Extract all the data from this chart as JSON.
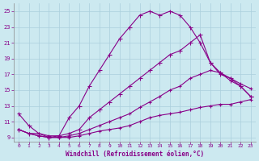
{
  "xlabel": "Windchill (Refroidissement éolien,°C)",
  "background_color": "#cce9f0",
  "grid_color": "#aacfdc",
  "line_color": "#880088",
  "xlim": [
    -0.5,
    23.5
  ],
  "ylim": [
    8.5,
    26.0
  ],
  "xticks": [
    0,
    1,
    2,
    3,
    4,
    5,
    6,
    7,
    8,
    9,
    10,
    11,
    12,
    13,
    14,
    15,
    16,
    17,
    18,
    19,
    20,
    21,
    22,
    23
  ],
  "yticks": [
    9,
    11,
    13,
    15,
    17,
    19,
    21,
    23,
    25
  ],
  "line_upper_x": [
    0,
    1,
    2,
    3,
    4,
    5,
    6,
    7,
    8,
    9,
    10,
    11,
    12,
    13,
    14,
    15,
    16,
    17,
    18,
    19,
    20,
    21,
    22,
    23
  ],
  "line_upper_y": [
    12.0,
    10.5,
    9.5,
    9.0,
    9.2,
    11.5,
    13.0,
    15.5,
    17.5,
    19.5,
    21.5,
    23.0,
    24.5,
    25.0,
    24.5,
    25.0,
    24.5,
    23.0,
    21.0,
    18.5,
    17.2,
    16.2,
    15.5,
    14.2
  ],
  "line_mid_x": [
    0,
    1,
    2,
    3,
    4,
    5,
    6,
    7,
    8,
    9,
    10,
    11,
    12,
    13,
    14,
    15,
    16,
    17,
    18,
    19,
    20,
    21,
    22,
    23
  ],
  "line_mid_y": [
    10.0,
    9.5,
    9.5,
    9.2,
    9.2,
    9.5,
    10.0,
    11.5,
    12.5,
    13.5,
    14.5,
    15.5,
    16.5,
    17.5,
    18.5,
    19.5,
    20.0,
    21.0,
    22.0,
    18.5,
    17.0,
    16.5,
    15.5,
    14.2
  ],
  "line_med2_x": [
    0,
    1,
    2,
    3,
    4,
    5,
    6,
    7,
    8,
    9,
    10,
    11,
    12,
    13,
    14,
    15,
    16,
    17,
    18,
    19,
    20,
    21,
    22,
    23
  ],
  "line_med2_y": [
    10.0,
    9.5,
    9.2,
    9.0,
    9.0,
    9.2,
    9.5,
    10.0,
    10.5,
    11.0,
    11.5,
    12.0,
    12.8,
    13.5,
    14.2,
    15.0,
    15.5,
    16.5,
    17.0,
    17.5,
    17.2,
    16.5,
    15.8,
    15.2
  ],
  "line_flat_x": [
    0,
    1,
    2,
    3,
    4,
    5,
    6,
    7,
    8,
    9,
    10,
    11,
    12,
    13,
    14,
    15,
    16,
    17,
    18,
    19,
    20,
    21,
    22,
    23
  ],
  "line_flat_y": [
    10.0,
    9.5,
    9.2,
    9.0,
    9.0,
    9.0,
    9.2,
    9.5,
    9.8,
    10.0,
    10.2,
    10.5,
    11.0,
    11.5,
    11.8,
    12.0,
    12.2,
    12.5,
    12.8,
    13.0,
    13.2,
    13.2,
    13.5,
    13.8
  ]
}
